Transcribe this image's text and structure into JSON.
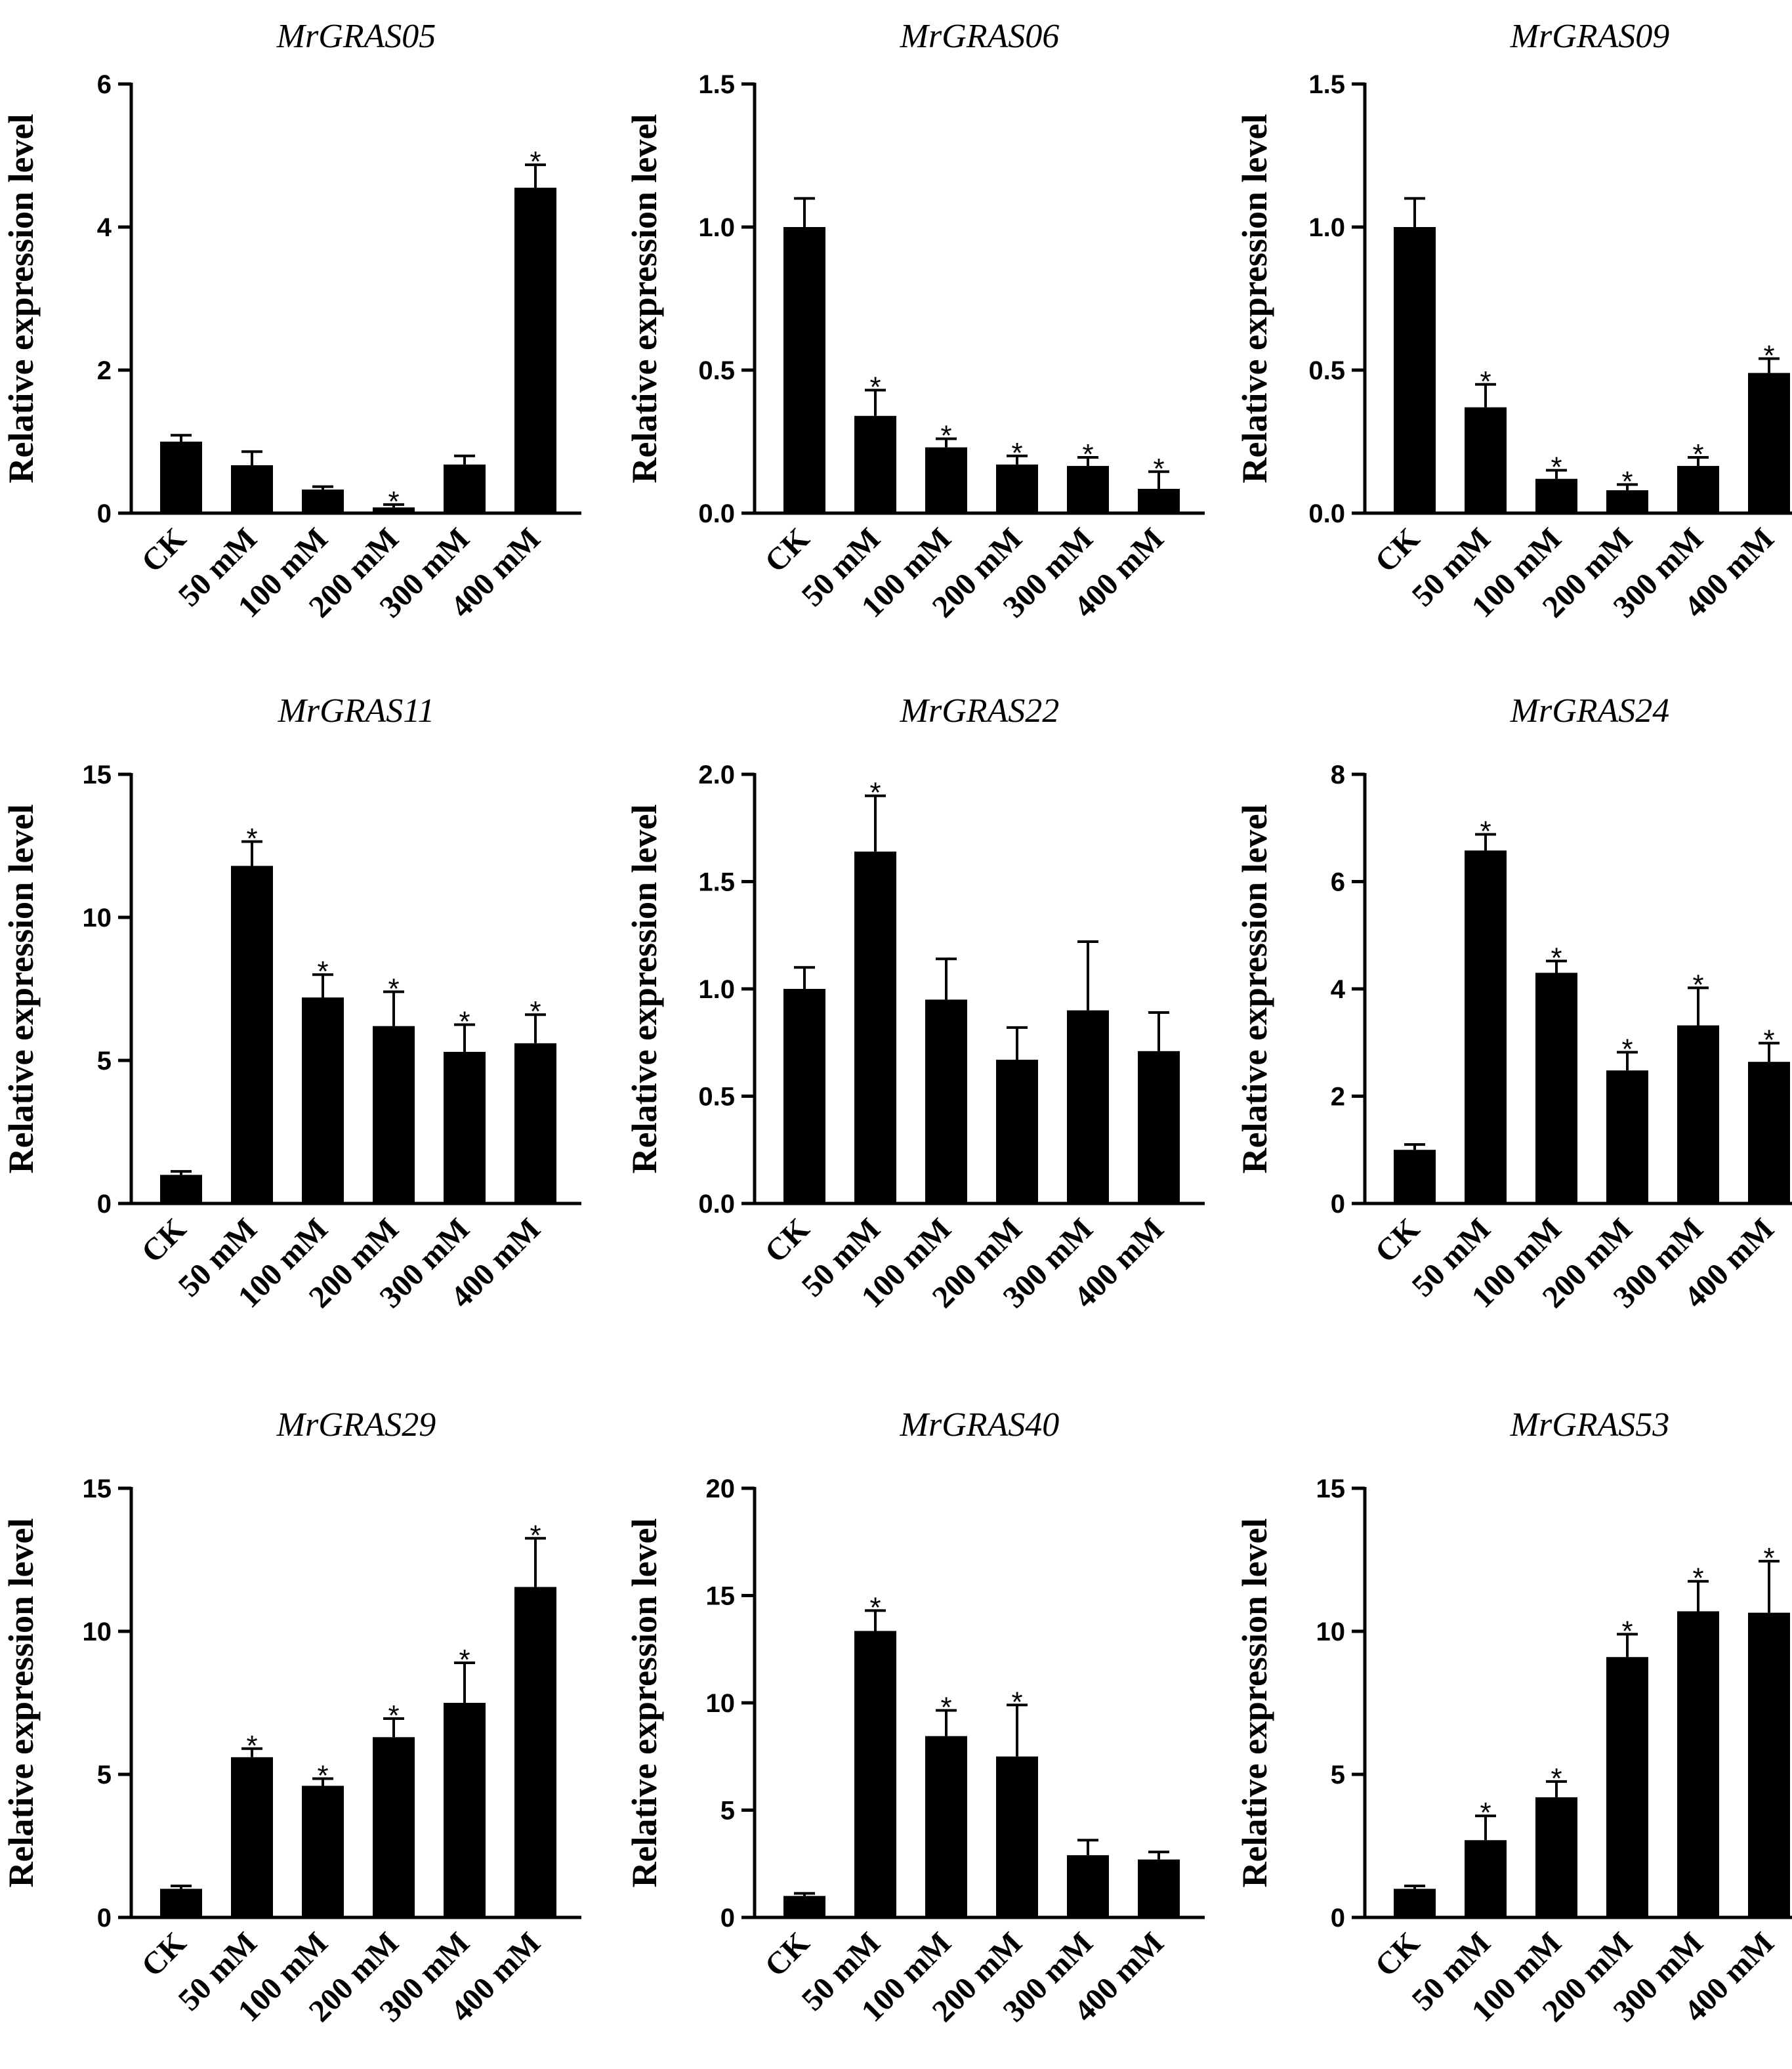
{
  "figure": {
    "ylabel": "Relative expression level",
    "categories": [
      "CK",
      "50 mM",
      "100 mM",
      "200 mM",
      "300 mM",
      "400 mM"
    ],
    "significance_marker": "*"
  },
  "chart_data": [
    {
      "type": "bar",
      "title": "MrGRAS05",
      "ylabel": "Relative expression level",
      "categories": [
        "CK",
        "50 mM",
        "100 mM",
        "200 mM",
        "300 mM",
        "400 mM"
      ],
      "values": [
        1.0,
        0.67,
        0.33,
        0.08,
        0.68,
        4.55
      ],
      "errors": [
        0.09,
        0.19,
        0.04,
        0.04,
        0.12,
        0.32
      ],
      "significant": [
        false,
        false,
        false,
        true,
        false,
        true
      ],
      "ylim": [
        0,
        6
      ],
      "yticks": [
        0,
        2,
        4,
        6
      ],
      "tick_labels": [
        "0",
        "2",
        "4",
        "6"
      ]
    },
    {
      "type": "bar",
      "title": "MrGRAS06",
      "ylabel": "Relative expression level",
      "categories": [
        "CK",
        "50 mM",
        "100 mM",
        "200 mM",
        "300 mM",
        "400 mM"
      ],
      "values": [
        1.0,
        0.34,
        0.23,
        0.17,
        0.165,
        0.085
      ],
      "errors": [
        0.1,
        0.09,
        0.03,
        0.03,
        0.03,
        0.06
      ],
      "significant": [
        false,
        true,
        true,
        true,
        true,
        true
      ],
      "ylim": [
        0,
        1.5
      ],
      "yticks": [
        0,
        0.5,
        1.0,
        1.5
      ],
      "tick_labels": [
        "0.0",
        "0.5",
        "1.0",
        "1.5"
      ]
    },
    {
      "type": "bar",
      "title": "MrGRAS09",
      "ylabel": "Relative expression level",
      "categories": [
        "CK",
        "50 mM",
        "100 mM",
        "200 mM",
        "300 mM",
        "400 mM"
      ],
      "values": [
        1.0,
        0.37,
        0.12,
        0.08,
        0.165,
        0.49
      ],
      "errors": [
        0.1,
        0.08,
        0.03,
        0.02,
        0.03,
        0.05
      ],
      "significant": [
        false,
        true,
        true,
        true,
        true,
        true
      ],
      "ylim": [
        0,
        1.5
      ],
      "yticks": [
        0,
        0.5,
        1.0,
        1.5
      ],
      "tick_labels": [
        "0.0",
        "0.5",
        "1.0",
        "1.5"
      ]
    },
    {
      "type": "bar",
      "title": "MrGRAS11",
      "ylabel": "Relative expression level",
      "categories": [
        "CK",
        "50 mM",
        "100 mM",
        "200 mM",
        "300 mM",
        "400 mM"
      ],
      "values": [
        1.0,
        11.8,
        7.2,
        6.2,
        5.3,
        5.6
      ],
      "errors": [
        0.12,
        0.85,
        0.8,
        1.2,
        0.95,
        1.0
      ],
      "significant": [
        false,
        true,
        true,
        true,
        true,
        true
      ],
      "ylim": [
        0,
        15
      ],
      "yticks": [
        0,
        5,
        10,
        15
      ],
      "tick_labels": [
        "0",
        "5",
        "10",
        "15"
      ]
    },
    {
      "type": "bar",
      "title": "MrGRAS22",
      "ylabel": "Relative expression level",
      "categories": [
        "CK",
        "50 mM",
        "100 mM",
        "200 mM",
        "300 mM",
        "400 mM"
      ],
      "values": [
        1.0,
        1.64,
        0.95,
        0.67,
        0.9,
        0.71
      ],
      "errors": [
        0.1,
        0.26,
        0.19,
        0.15,
        0.32,
        0.18
      ],
      "significant": [
        false,
        true,
        false,
        false,
        false,
        false
      ],
      "ylim": [
        0,
        2.0
      ],
      "yticks": [
        0,
        0.5,
        1.0,
        1.5,
        2.0
      ],
      "tick_labels": [
        "0.0",
        "0.5",
        "1.0",
        "1.5",
        "2.0"
      ]
    },
    {
      "type": "bar",
      "title": "MrGRAS24",
      "ylabel": "Relative expression level",
      "categories": [
        "CK",
        "50 mM",
        "100 mM",
        "200 mM",
        "300 mM",
        "400 mM"
      ],
      "values": [
        1.0,
        6.58,
        4.3,
        2.48,
        3.32,
        2.64
      ],
      "errors": [
        0.1,
        0.3,
        0.22,
        0.34,
        0.7,
        0.35
      ],
      "significant": [
        false,
        true,
        true,
        true,
        true,
        true
      ],
      "ylim": [
        0,
        8
      ],
      "yticks": [
        0,
        2,
        4,
        6,
        8
      ],
      "tick_labels": [
        "0",
        "2",
        "4",
        "6",
        "8"
      ]
    },
    {
      "type": "bar",
      "title": "MrGRAS29",
      "ylabel": "Relative expression level",
      "categories": [
        "CK",
        "50 mM",
        "100 mM",
        "200 mM",
        "300 mM",
        "400 mM"
      ],
      "values": [
        1.0,
        5.6,
        4.6,
        6.3,
        7.5,
        11.55
      ],
      "errors": [
        0.1,
        0.3,
        0.25,
        0.65,
        1.4,
        1.7
      ],
      "significant": [
        false,
        true,
        true,
        true,
        true,
        true
      ],
      "ylim": [
        0,
        15
      ],
      "yticks": [
        0,
        5,
        10,
        15
      ],
      "tick_labels": [
        "0",
        "5",
        "10",
        "15"
      ]
    },
    {
      "type": "bar",
      "title": "MrGRAS40",
      "ylabel": "Relative expression level",
      "categories": [
        "CK",
        "50 mM",
        "100 mM",
        "200 mM",
        "300 mM",
        "400 mM"
      ],
      "values": [
        1.0,
        13.35,
        8.45,
        7.5,
        2.9,
        2.7
      ],
      "errors": [
        0.12,
        0.95,
        1.2,
        2.4,
        0.7,
        0.35
      ],
      "significant": [
        false,
        true,
        true,
        true,
        false,
        false
      ],
      "ylim": [
        0,
        20
      ],
      "yticks": [
        0,
        5,
        10,
        15,
        20
      ],
      "tick_labels": [
        "0",
        "5",
        "10",
        "15",
        "20"
      ]
    },
    {
      "type": "bar",
      "title": "MrGRAS53",
      "ylabel": "Relative expression level",
      "categories": [
        "CK",
        "50 mM",
        "100 mM",
        "200 mM",
        "300 mM",
        "400 mM"
      ],
      "values": [
        1.0,
        2.7,
        4.2,
        9.1,
        10.7,
        10.65
      ],
      "errors": [
        0.1,
        0.85,
        0.55,
        0.8,
        1.05,
        1.8
      ],
      "significant": [
        false,
        true,
        true,
        true,
        true,
        true
      ],
      "ylim": [
        0,
        15
      ],
      "yticks": [
        0,
        5,
        10,
        15
      ],
      "tick_labels": [
        "0",
        "5",
        "10",
        "15"
      ]
    }
  ]
}
